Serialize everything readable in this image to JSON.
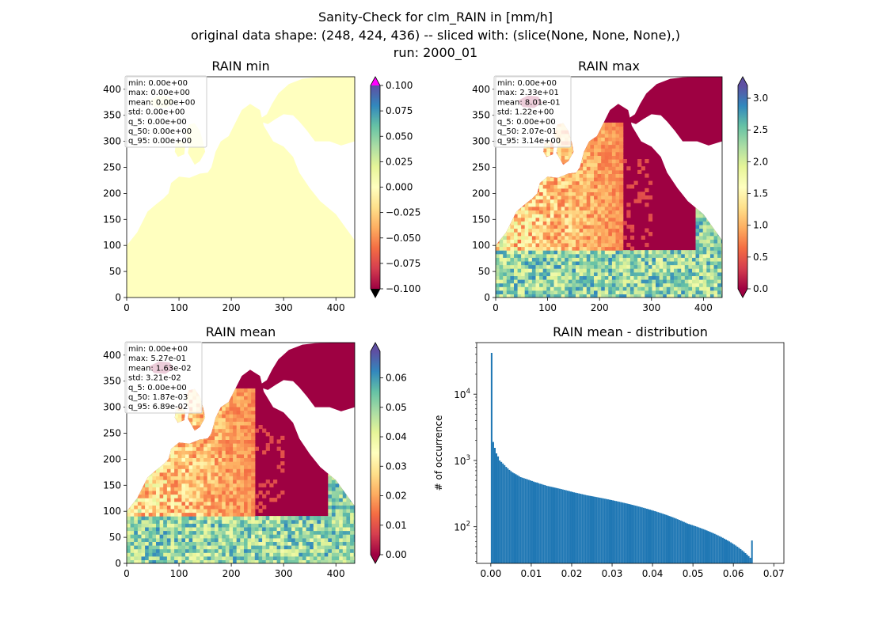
{
  "suptitle": {
    "line1": "Sanity-Check for clm_RAIN in [mm/h]",
    "line2": "original data shape: (248, 424, 436) -- sliced with: (slice(None, None, None),)",
    "line3": "run: 2000_01"
  },
  "colors": {
    "map_low": "#9e0142",
    "map_mid": "#ffffbf",
    "map_high": "#5e4fa2",
    "over": "#ff00ff",
    "under": "#000000",
    "hist_bar": "#1f77b4"
  },
  "colormap": "Spectral_r",
  "chart_data": [
    {
      "type": "heatmap",
      "title": "RAIN min",
      "xlim": [
        0,
        436
      ],
      "ylim": [
        0,
        424
      ],
      "x_ticks": [
        "0",
        "100",
        "200",
        "300",
        "400"
      ],
      "y_ticks": [
        "0",
        "50",
        "100",
        "150",
        "200",
        "250",
        "300",
        "350",
        "400"
      ],
      "colorbar": {
        "min": -0.1,
        "max": 0.1,
        "ticks": [
          "0.100",
          "0.075",
          "0.050",
          "0.025",
          "0.000",
          "−0.025",
          "−0.050",
          "−0.075",
          "−0.100"
        ],
        "extend": "both"
      },
      "stats": [
        "min: 0.00e+00",
        "max: 0.00e+00",
        "mean: 0.00e+00",
        "std: 0.00e+00",
        "q_5: 0.00e+00",
        "q_50: 0.00e+00",
        "q_95: 0.00e+00"
      ]
    },
    {
      "type": "heatmap",
      "title": "RAIN max",
      "xlim": [
        0,
        436
      ],
      "ylim": [
        0,
        424
      ],
      "x_ticks": [
        "0",
        "100",
        "200",
        "300",
        "400"
      ],
      "y_ticks": [
        "0",
        "50",
        "100",
        "150",
        "200",
        "250",
        "300",
        "350",
        "400"
      ],
      "colorbar": {
        "min": 0.0,
        "max": 3.2,
        "ticks": [
          "3.0",
          "2.5",
          "2.0",
          "1.5",
          "1.0",
          "0.5",
          "0.0"
        ],
        "tick_values": [
          3.0,
          2.5,
          2.0,
          1.5,
          1.0,
          0.5,
          0.0
        ],
        "extend": "both"
      },
      "stats": [
        "min: 0.00e+00",
        "max: 2.33e+01",
        "mean: 8.01e-01",
        "std: 1.22e+00",
        "q_5: 0.00e+00",
        "q_50: 2.07e-01",
        "q_95: 3.14e+00"
      ]
    },
    {
      "type": "heatmap",
      "title": "RAIN mean",
      "xlim": [
        0,
        436
      ],
      "ylim": [
        0,
        424
      ],
      "x_ticks": [
        "0",
        "100",
        "200",
        "300",
        "400"
      ],
      "y_ticks": [
        "0",
        "50",
        "100",
        "150",
        "200",
        "250",
        "300",
        "350",
        "400"
      ],
      "colorbar": {
        "min": 0.0,
        "max": 0.069,
        "ticks": [
          "0.06",
          "0.05",
          "0.04",
          "0.03",
          "0.02",
          "0.01",
          "0.00"
        ],
        "tick_values": [
          0.06,
          0.05,
          0.04,
          0.03,
          0.02,
          0.01,
          0.0
        ],
        "extend": "both"
      },
      "stats": [
        "min: 0.00e+00",
        "max: 5.27e-01",
        "mean: 1.63e-02",
        "std: 3.21e-02",
        "q_5: 0.00e+00",
        "q_50: 1.87e-03",
        "q_95: 6.89e-02"
      ]
    },
    {
      "type": "bar",
      "title": "RAIN mean - distribution",
      "ylabel": "# of occurrence",
      "xlabel": "",
      "yscale": "log",
      "xlim": [
        -0.0035,
        0.0725
      ],
      "ylim": [
        28,
        60000
      ],
      "x_ticks": [
        0.0,
        0.01,
        0.02,
        0.03,
        0.04,
        0.05,
        0.06,
        0.07
      ],
      "x_tick_labels": [
        "0.00",
        "0.01",
        "0.02",
        "0.03",
        "0.04",
        "0.05",
        "0.06",
        "0.07"
      ],
      "y_major_ticks": [
        100,
        1000,
        10000
      ],
      "bin_width": 0.0004,
      "bin_start": 0.0,
      "values": [
        42000,
        1900,
        1550,
        1280,
        1150,
        1000,
        950,
        900,
        850,
        800,
        760,
        720,
        690,
        660,
        640,
        620,
        600,
        580,
        560,
        550,
        540,
        530,
        520,
        510,
        500,
        490,
        480,
        470,
        465,
        455,
        445,
        440,
        430,
        425,
        415,
        410,
        405,
        400,
        395,
        390,
        385,
        380,
        375,
        370,
        365,
        360,
        355,
        350,
        345,
        340,
        335,
        330,
        326,
        322,
        318,
        314,
        310,
        306,
        302,
        298,
        295,
        292,
        289,
        286,
        283,
        280,
        277,
        274,
        271,
        268,
        265,
        262,
        259,
        256,
        253,
        250,
        247,
        244,
        241,
        238,
        235,
        232,
        229,
        226,
        223,
        220,
        217,
        214,
        211,
        208,
        205,
        202,
        199,
        196,
        193,
        190,
        187,
        184,
        181,
        178,
        175,
        172,
        169,
        166,
        163,
        160,
        157,
        154,
        151,
        148,
        145,
        142,
        139,
        136,
        133,
        130,
        127,
        124,
        121,
        118,
        115,
        112,
        110,
        108,
        106,
        104,
        102,
        100,
        98,
        96,
        94,
        92,
        90,
        88,
        86,
        84,
        82,
        80,
        78,
        76,
        74,
        72,
        70,
        68,
        66,
        64,
        62,
        60,
        58,
        56,
        54,
        52,
        50,
        48,
        46,
        44,
        42,
        40,
        38,
        36,
        34,
        62
      ]
    }
  ]
}
